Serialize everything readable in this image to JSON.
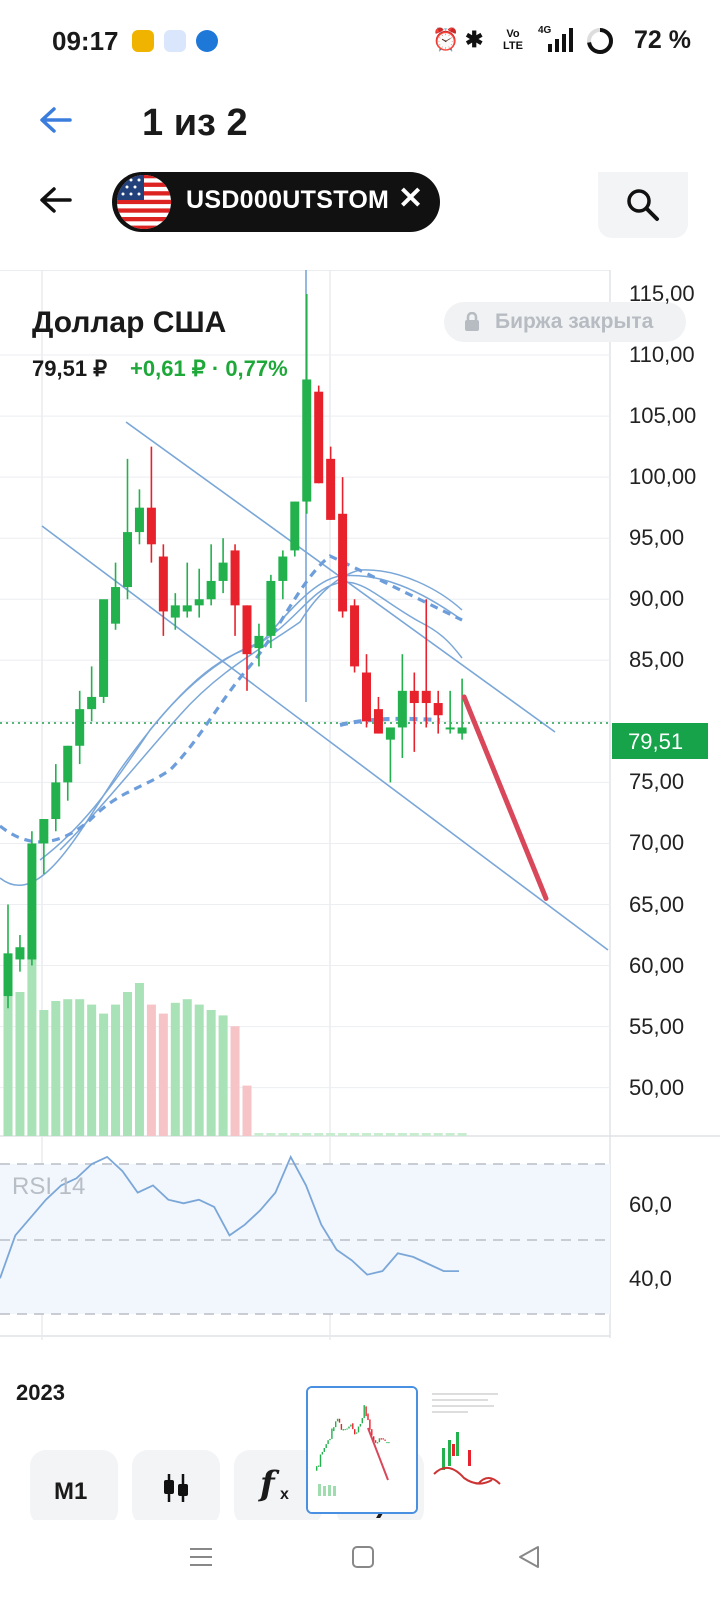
{
  "status_bar": {
    "time": "09:17",
    "network": "4G",
    "volte": "Vo LTE",
    "battery": "72 %",
    "icons": [
      "alarm-icon",
      "bluetooth-icon",
      "volte-icon",
      "signal-icon",
      "battery-icon"
    ]
  },
  "viewer": {
    "title": "1 из 2"
  },
  "app_bar": {
    "ticker": "USD000UTSTOM",
    "flag": "us-flag-icon"
  },
  "instrument": {
    "name": "Доллар США",
    "price": "79,51 ₽",
    "change": "+0,61 ₽ · 0,77%",
    "exchange_status": "Биржа закрыта",
    "current_price_label": "79,51"
  },
  "colors": {
    "up": "#22b14c",
    "down": "#e8222c",
    "line": "#7aa7d8",
    "forecast": "#d9485a",
    "price_tag": "#16a34a"
  },
  "price_axis": [
    "115,00",
    "110,00",
    "105,00",
    "100,00",
    "95,00",
    "90,00",
    "85,00",
    "80,00",
    "75,00",
    "70,00",
    "65,00",
    "60,00",
    "55,00",
    "50,00"
  ],
  "rsi": {
    "title": "RSI 14",
    "labels": [
      "60,0",
      "40,0"
    ]
  },
  "time_axis": {
    "year": "2023"
  },
  "toolbar": {
    "interval": "M1"
  },
  "chart_data": {
    "type": "candlestick",
    "y_unit": "RUB",
    "ylim": [
      46,
      116
    ],
    "candles": [
      {
        "o": 57.5,
        "h": 65.0,
        "l": 56.5,
        "c": 61.0
      },
      {
        "o": 60.5,
        "h": 62.5,
        "l": 59.5,
        "c": 61.5
      },
      {
        "o": 60.5,
        "h": 71.0,
        "l": 60.0,
        "c": 70.0
      },
      {
        "o": 70.0,
        "h": 72.0,
        "l": 67.5,
        "c": 72.0
      },
      {
        "o": 72.0,
        "h": 76.5,
        "l": 71.0,
        "c": 75.0
      },
      {
        "o": 75.0,
        "h": 78.0,
        "l": 73.5,
        "c": 78.0
      },
      {
        "o": 78.0,
        "h": 82.5,
        "l": 76.5,
        "c": 81.0
      },
      {
        "o": 81.0,
        "h": 84.5,
        "l": 80.0,
        "c": 82.0
      },
      {
        "o": 82.0,
        "h": 89.5,
        "l": 81.5,
        "c": 90.0
      },
      {
        "o": 88.0,
        "h": 93.0,
        "l": 87.5,
        "c": 91.0
      },
      {
        "o": 91.0,
        "h": 101.5,
        "l": 90.0,
        "c": 95.5
      },
      {
        "o": 95.5,
        "h": 99.0,
        "l": 94.5,
        "c": 97.5
      },
      {
        "o": 97.5,
        "h": 102.5,
        "l": 93.0,
        "c": 94.5
      },
      {
        "o": 93.5,
        "h": 94.5,
        "l": 87.0,
        "c": 89.0
      },
      {
        "o": 88.5,
        "h": 90.5,
        "l": 87.5,
        "c": 89.5
      },
      {
        "o": 89.0,
        "h": 93.0,
        "l": 88.5,
        "c": 89.5
      },
      {
        "o": 89.5,
        "h": 92.5,
        "l": 88.5,
        "c": 90.0
      },
      {
        "o": 90.0,
        "h": 94.5,
        "l": 89.5,
        "c": 91.5
      },
      {
        "o": 91.5,
        "h": 95.0,
        "l": 90.5,
        "c": 93.0
      },
      {
        "o": 94.0,
        "h": 94.5,
        "l": 87.0,
        "c": 89.5
      },
      {
        "o": 89.5,
        "h": 89.5,
        "l": 82.5,
        "c": 85.5
      },
      {
        "o": 86.0,
        "h": 88.0,
        "l": 84.5,
        "c": 87.0
      },
      {
        "o": 87.0,
        "h": 92.0,
        "l": 86.0,
        "c": 91.5
      },
      {
        "o": 91.5,
        "h": 94.0,
        "l": 90.0,
        "c": 93.5
      },
      {
        "o": 94.0,
        "h": 98.0,
        "l": 93.5,
        "c": 98.0
      },
      {
        "o": 98.0,
        "h": 115.0,
        "l": 97.0,
        "c": 108.0
      },
      {
        "o": 107.0,
        "h": 107.5,
        "l": 99.5,
        "c": 99.5
      },
      {
        "o": 101.5,
        "h": 102.5,
        "l": 96.5,
        "c": 96.5
      },
      {
        "o": 97.0,
        "h": 100.0,
        "l": 88.5,
        "c": 89.0
      },
      {
        "o": 89.5,
        "h": 90.0,
        "l": 84.0,
        "c": 84.5
      },
      {
        "o": 84.0,
        "h": 85.5,
        "l": 79.5,
        "c": 80.0
      },
      {
        "o": 81.0,
        "h": 82.0,
        "l": 79.0,
        "c": 79.0
      },
      {
        "o": 78.5,
        "h": 79.5,
        "l": 75.0,
        "c": 79.5
      },
      {
        "o": 79.5,
        "h": 85.5,
        "l": 77.0,
        "c": 82.5
      },
      {
        "o": 82.5,
        "h": 84.0,
        "l": 77.5,
        "c": 81.5
      },
      {
        "o": 82.5,
        "h": 90.0,
        "l": 79.5,
        "c": 81.5
      },
      {
        "o": 81.5,
        "h": 82.5,
        "l": 79.0,
        "c": 80.5
      },
      {
        "o": 79.5,
        "h": 82.5,
        "l": 79.0,
        "c": 79.5
      },
      {
        "o": 79.0,
        "h": 83.5,
        "l": 78.5,
        "c": 79.5
      }
    ],
    "volume_rel": [
      0.95,
      0.8,
      1.0,
      0.7,
      0.75,
      0.76,
      0.76,
      0.73,
      0.68,
      0.73,
      0.8,
      0.85,
      0.73,
      0.68,
      0.74,
      0.76,
      0.73,
      0.7,
      0.67,
      0.61,
      0.28
    ],
    "rsi_values": [
      40,
      52,
      57,
      62,
      66,
      68,
      72,
      74,
      70,
      64,
      66,
      62,
      61,
      62,
      60,
      52,
      55,
      59,
      64,
      74,
      66,
      55,
      48,
      45,
      41,
      42,
      47,
      46,
      44,
      42,
      42
    ],
    "rsi_range": [
      30,
      72
    ],
    "projection": {
      "from": 82.0,
      "to": 65.5
    }
  }
}
